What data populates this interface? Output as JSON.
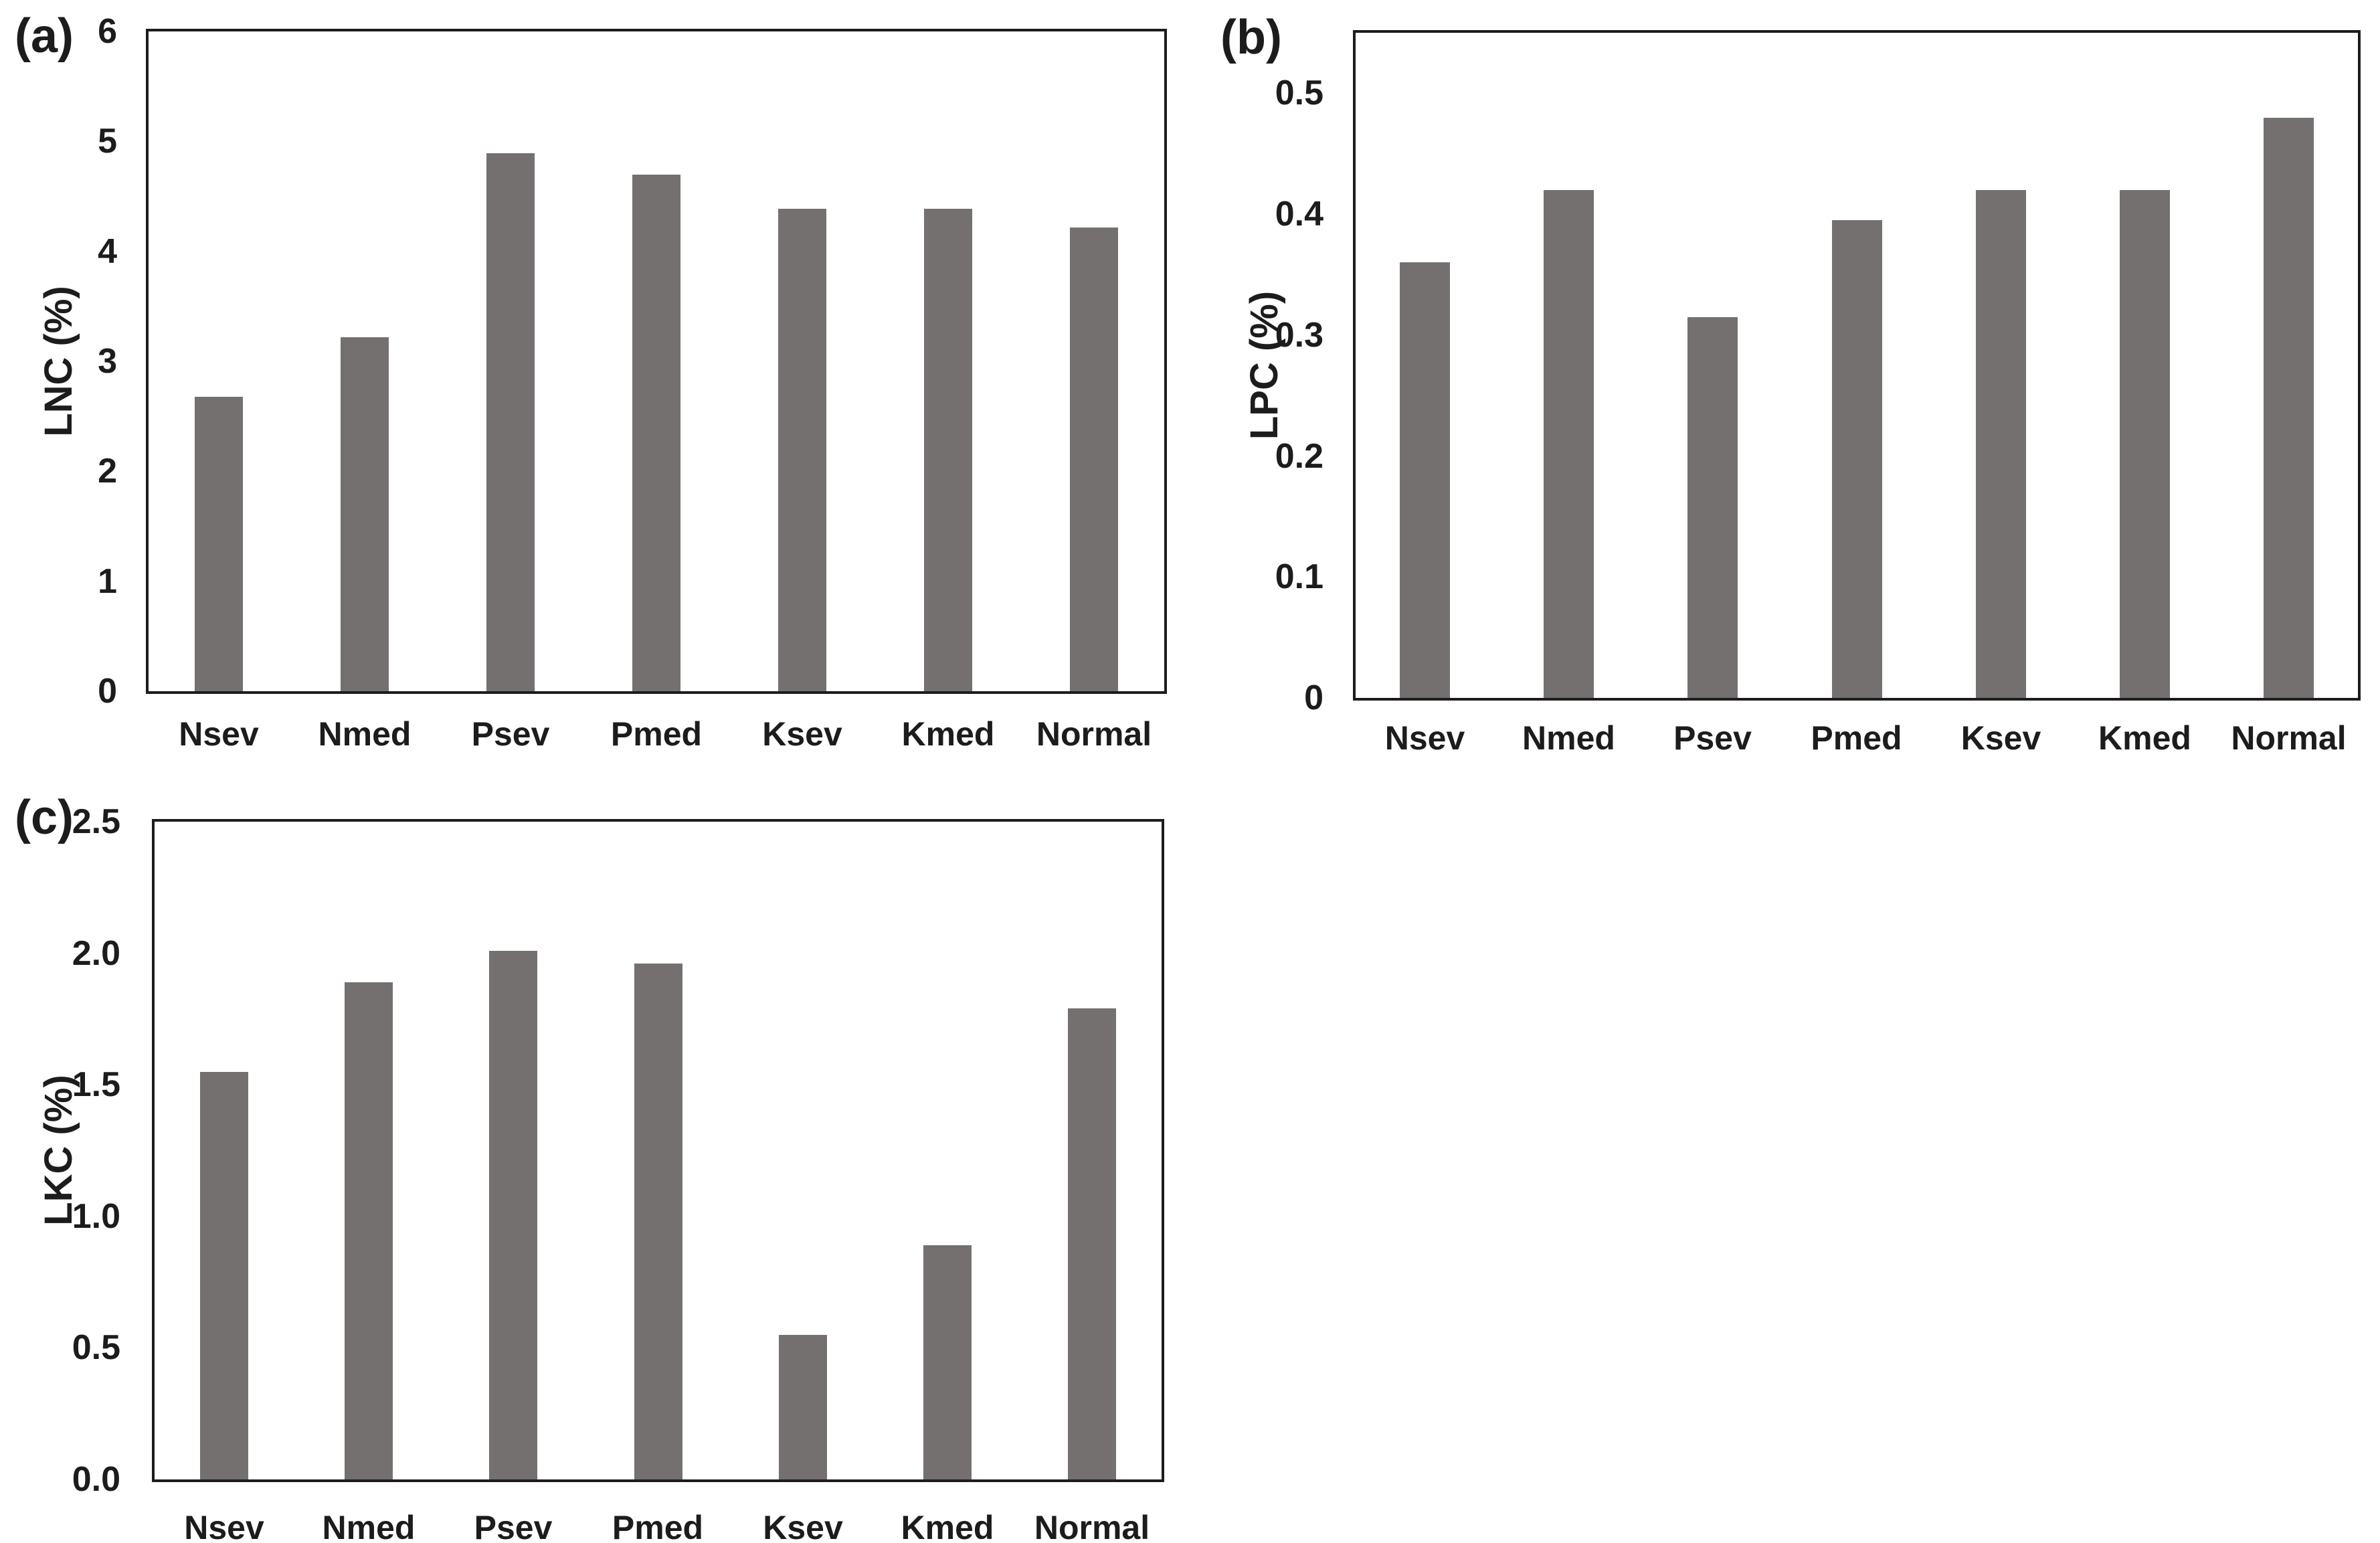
{
  "figure": {
    "background_color": "#ffffff",
    "bar_color": "#747070",
    "frame_color": "#1c1c1c",
    "text_color": "#1c1c1c"
  },
  "chart_data": [
    {
      "id": "a",
      "type": "bar",
      "panel_label": "(a)",
      "ylabel": "LNC (%)",
      "xlabel": "",
      "title": "",
      "legend": "none",
      "grid": false,
      "categories": [
        "Nsev",
        "Nmed",
        "Psev",
        "Pmed",
        "Ksev",
        "Kmed",
        "Normal"
      ],
      "values": [
        2.68,
        3.22,
        4.89,
        4.7,
        4.39,
        4.39,
        4.22
      ],
      "ylim": [
        0,
        6
      ],
      "ytick_values": [
        6,
        5,
        4,
        3,
        2,
        1,
        0
      ],
      "ytick_labels": [
        "6",
        "5",
        "4",
        "3",
        "2",
        "1",
        "0"
      ]
    },
    {
      "id": "b",
      "type": "bar",
      "panel_label": "(b)",
      "ylabel": "LPC (%)",
      "xlabel": "",
      "title": "",
      "legend": "none",
      "grid": false,
      "categories": [
        "Nsev",
        "Nmed",
        "Psev",
        "Pmed",
        "Ksev",
        "Kmed",
        "Normal"
      ],
      "values": [
        0.36,
        0.42,
        0.315,
        0.395,
        0.42,
        0.42,
        0.48
      ],
      "ylim": [
        0,
        0.55
      ],
      "ytick_values": [
        0.5,
        0.4,
        0.3,
        0.2,
        0.1,
        0
      ],
      "ytick_labels": [
        "0.5",
        "0.4",
        "0.3",
        "0.2",
        "0.1",
        "0"
      ]
    },
    {
      "id": "c",
      "type": "bar",
      "panel_label": "(c)",
      "ylabel": "LKC (%)",
      "xlabel": "",
      "title": "",
      "legend": "none",
      "grid": false,
      "categories": [
        "Nsev",
        "Nmed",
        "Psev",
        "Pmed",
        "Ksev",
        "Kmed",
        "Normal"
      ],
      "values": [
        1.55,
        1.89,
        2.01,
        1.96,
        0.55,
        0.89,
        1.79
      ],
      "ylim": [
        0,
        2.5
      ],
      "ytick_values": [
        2.5,
        2.0,
        1.5,
        1.0,
        0.5,
        0.0
      ],
      "ytick_labels": [
        "2.5",
        "2.0",
        "1.5",
        "1.0",
        "0.5",
        "0.0"
      ]
    }
  ]
}
